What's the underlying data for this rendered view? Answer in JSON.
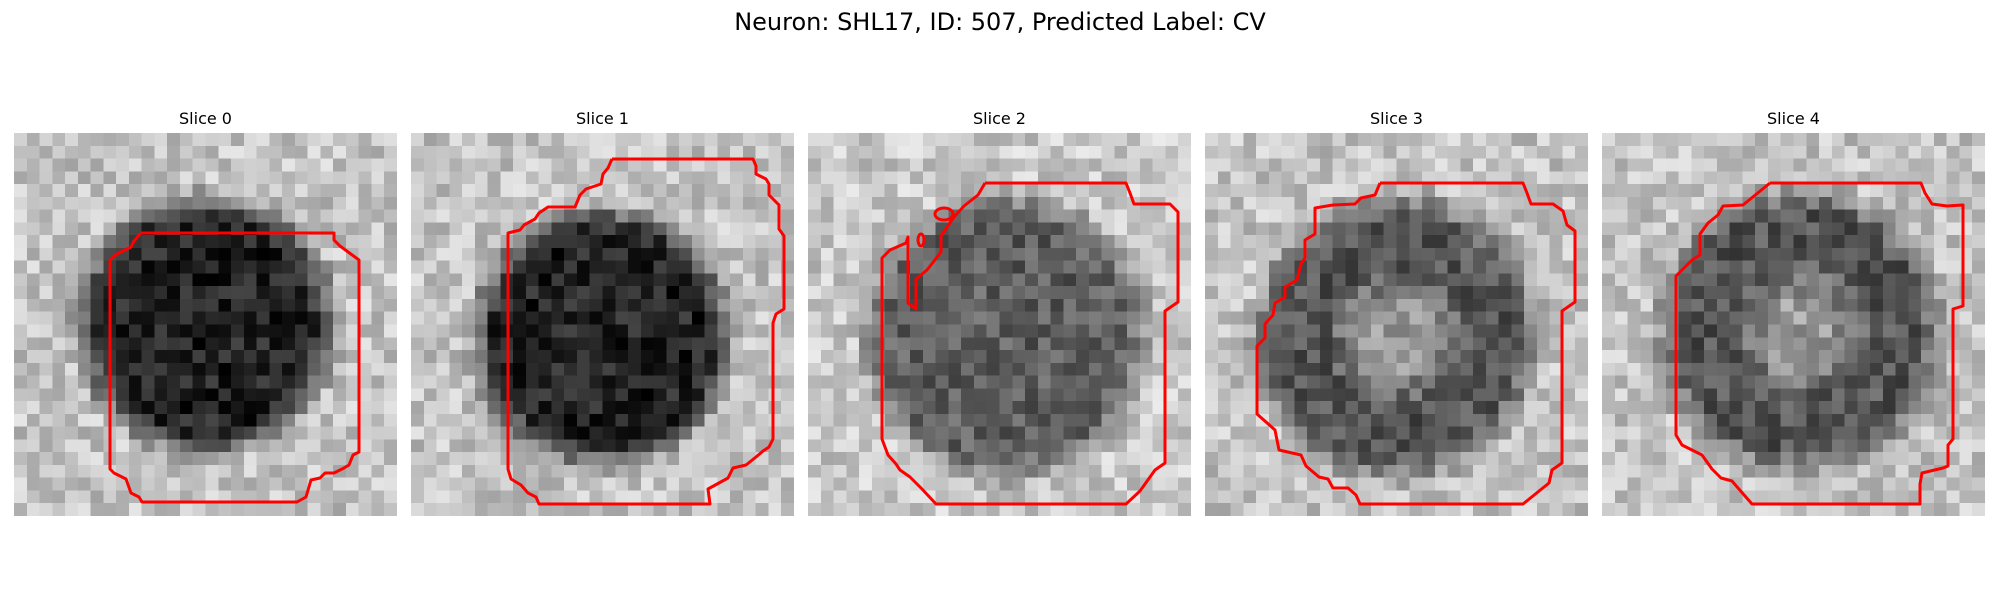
{
  "figure": {
    "title": "Neuron: SHL17, ID: 507, Predicted Label: CV",
    "colormap": "gray",
    "contour_color": "#ff0000"
  },
  "panels": [
    {
      "title": "Slice 0",
      "pattern": "dark-blob"
    },
    {
      "title": "Slice 1",
      "pattern": "dark-blob"
    },
    {
      "title": "Slice 2",
      "pattern": "mixed"
    },
    {
      "title": "Slice 3",
      "pattern": "bright-center"
    },
    {
      "title": "Slice 4",
      "pattern": "bright-center"
    }
  ]
}
